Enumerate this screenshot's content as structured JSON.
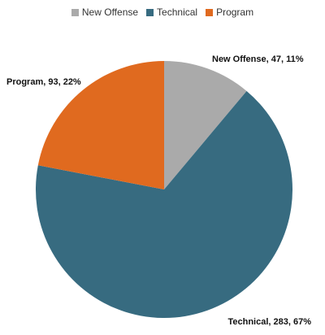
{
  "chart_data": {
    "type": "pie",
    "title": "",
    "legend_position": "top",
    "slices": [
      {
        "label": "New Offense",
        "value": 47,
        "percent": "11%",
        "color": "#aaaaaa",
        "data_label": "New Offense, 47, 11%"
      },
      {
        "label": "Technical",
        "value": 283,
        "percent": "67%",
        "color": "#376b80",
        "data_label": "Technical, 283, 67%"
      },
      {
        "label": "Program",
        "value": 93,
        "percent": "22%",
        "color": "#e06a1f",
        "data_label": "Program, 93, 22%"
      }
    ]
  }
}
